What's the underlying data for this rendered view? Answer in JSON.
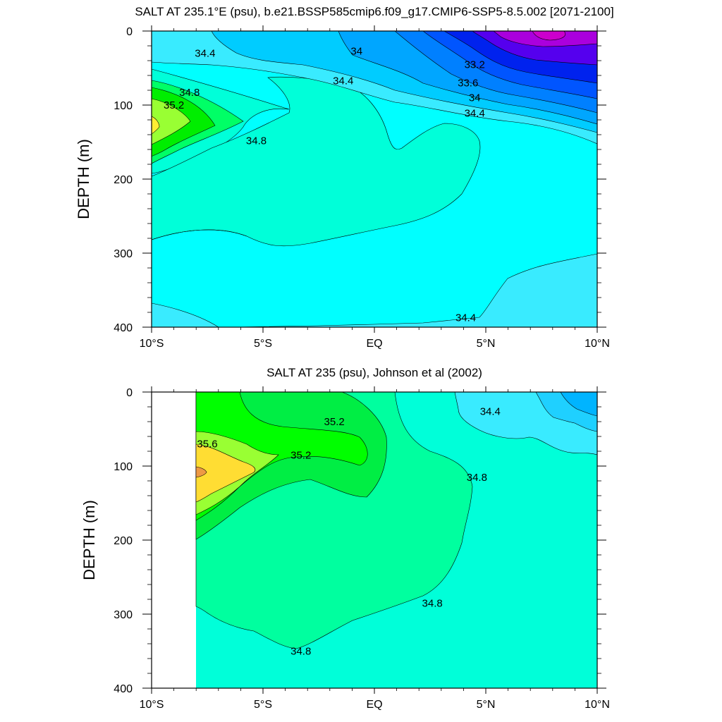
{
  "chart_data": [
    {
      "type": "contour",
      "title": "SALT AT 235.1°E (psu), b.e21.BSSP585cmip6.f09_g17.CMIP6-SSP5-8.5.002 [2071-2100]",
      "xlabel": "",
      "ylabel": "DEPTH (m)",
      "xlim": [
        -10,
        10
      ],
      "ylim": [
        0,
        400
      ],
      "x_ticks": [
        -10,
        -5,
        0,
        5,
        10
      ],
      "x_tick_labels": [
        "10°S",
        "5°S",
        "EQ",
        "5°N",
        "10°N"
      ],
      "y_ticks": [
        0,
        100,
        200,
        300,
        400
      ],
      "y_tick_labels": [
        "0",
        "100",
        "200",
        "300",
        "400"
      ],
      "data_lon_min": -10,
      "contour_interval": 0.2,
      "contour_labels": [
        {
          "text": "34.4",
          "x": -7.6,
          "y": 30
        },
        {
          "text": "34",
          "x": -0.8,
          "y": 27
        },
        {
          "text": "33.2",
          "x": 4.5,
          "y": 45
        },
        {
          "text": "34.4",
          "x": -1.4,
          "y": 67
        },
        {
          "text": "33.6",
          "x": 4.2,
          "y": 70
        },
        {
          "text": "34.8",
          "x": -8.3,
          "y": 83
        },
        {
          "text": "34",
          "x": 4.5,
          "y": 90
        },
        {
          "text": "35.2",
          "x": -9.0,
          "y": 100
        },
        {
          "text": "34.4",
          "x": 4.5,
          "y": 111
        },
        {
          "text": "34.8",
          "x": -5.3,
          "y": 148
        },
        {
          "text": "34.4",
          "x": 4.1,
          "y": 387
        }
      ]
    },
    {
      "type": "contour",
      "title": "SALT AT 235 (psu), Johnson et al (2002)",
      "xlabel": "",
      "ylabel": "DEPTH (m)",
      "xlim": [
        -10,
        10
      ],
      "ylim": [
        0,
        400
      ],
      "x_ticks": [
        -10,
        -5,
        0,
        5,
        10
      ],
      "x_tick_labels": [
        "10°S",
        "5°S",
        "EQ",
        "5°N",
        "10°N"
      ],
      "y_ticks": [
        0,
        100,
        200,
        300,
        400
      ],
      "y_tick_labels": [
        "0",
        "100",
        "200",
        "300",
        "400"
      ],
      "data_lon_min": -8,
      "contour_interval": 0.2,
      "contour_labels": [
        {
          "text": "34.4",
          "x": 5.2,
          "y": 26
        },
        {
          "text": "35.2",
          "x": -1.8,
          "y": 40
        },
        {
          "text": "35.6",
          "x": -7.5,
          "y": 70
        },
        {
          "text": "35.2",
          "x": -3.3,
          "y": 85
        },
        {
          "text": "34.8",
          "x": 4.6,
          "y": 115
        },
        {
          "text": "34.8",
          "x": 2.6,
          "y": 285
        },
        {
          "text": "34.8",
          "x": -3.3,
          "y": 350
        }
      ]
    }
  ]
}
